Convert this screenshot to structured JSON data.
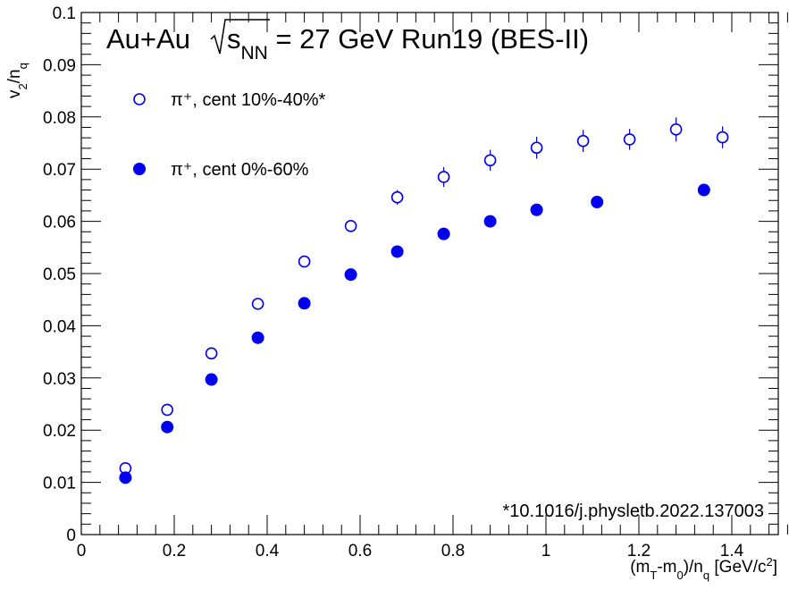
{
  "chart_data": {
    "type": "scatter",
    "title": "",
    "system_label": "Au+Au",
    "energy_label": {
      "sqrt": "√",
      "var": "s",
      "sub": "NN",
      "rest": " = 27 GeV Run19 (BES-II)"
    },
    "reference": "*10.1016/j.physletb.2022.137003",
    "xlabel": {
      "p1": "(m",
      "sub1": "T",
      "p2": "-m",
      "sub2": "0",
      "p3": ")/n",
      "sub3": "q",
      "p4": " [GeV/c",
      "sup": "2",
      "p5": "]"
    },
    "ylabel": {
      "p1": "v",
      "sub1": "2",
      "p2": "/n",
      "sub2": "q"
    },
    "xlim": [
      0,
      1.5
    ],
    "ylim": [
      0,
      0.1
    ],
    "xticks": [
      0,
      0.2,
      0.4,
      0.6,
      0.8,
      1,
      1.2,
      1.4
    ],
    "xtick_labels": [
      "0",
      "0.2",
      "0.4",
      "0.6",
      "0.8",
      "1",
      "1.2",
      "1.4"
    ],
    "yticks": [
      0,
      0.01,
      0.02,
      0.03,
      0.04,
      0.05,
      0.06,
      0.07,
      0.08,
      0.09,
      0.1
    ],
    "ytick_labels": [
      "0",
      "0.01",
      "0.02",
      "0.03",
      "0.04",
      "0.05",
      "0.06",
      "0.07",
      "0.08",
      "0.09",
      "0.1"
    ],
    "grid": false,
    "legend_position": "top-left",
    "series": [
      {
        "name": "π⁺, cent 10%-40%*",
        "marker": "open-circle",
        "color": "#0000ee",
        "x": [
          0.095,
          0.185,
          0.28,
          0.38,
          0.48,
          0.58,
          0.68,
          0.78,
          0.88,
          0.98,
          1.08,
          1.18,
          1.28,
          1.38
        ],
        "y": [
          0.0127,
          0.0239,
          0.0347,
          0.0442,
          0.0523,
          0.0591,
          0.0646,
          0.0685,
          0.0717,
          0.0741,
          0.0754,
          0.0757,
          0.0776,
          0.0761
        ],
        "yerr": [
          0.0005,
          0.0006,
          0.0007,
          0.0008,
          0.0009,
          0.0011,
          0.0014,
          0.0019,
          0.002,
          0.0021,
          0.0021,
          0.002,
          0.0023,
          0.0021
        ]
      },
      {
        "name": "π⁺, cent 0%-60%",
        "marker": "filled-circle",
        "color": "#0000ee",
        "x": [
          0.095,
          0.185,
          0.28,
          0.38,
          0.48,
          0.58,
          0.68,
          0.78,
          0.88,
          0.98,
          1.11,
          1.34
        ],
        "y": [
          0.0109,
          0.0206,
          0.0297,
          0.0377,
          0.0443,
          0.0498,
          0.0542,
          0.0576,
          0.06,
          0.0622,
          0.0637,
          0.066
        ],
        "yerr": [
          0,
          0,
          0,
          0,
          0,
          0,
          0,
          0,
          0,
          0,
          0,
          0
        ]
      }
    ]
  }
}
